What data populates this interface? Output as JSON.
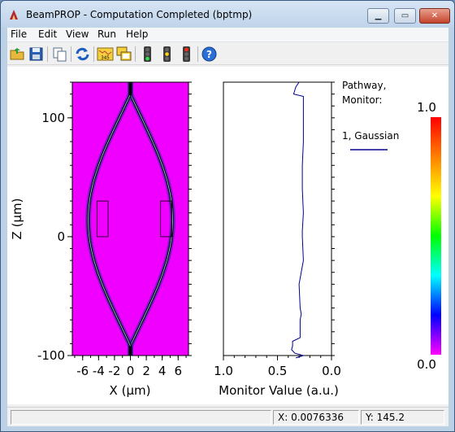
{
  "window": {
    "title": "BeamPROP - Computation Completed (bptmp)",
    "controls": [
      "minimize",
      "maximize",
      "close"
    ]
  },
  "menu": {
    "items": [
      {
        "label": "File"
      },
      {
        "label": "Edit"
      },
      {
        "label": "View"
      },
      {
        "label": "Run"
      },
      {
        "label": "Help"
      }
    ]
  },
  "toolbar": {
    "buttons": [
      "open-folder-icon",
      "save-icon",
      "copy-icon",
      "refresh-icon",
      "display-345-icon",
      "windows-icon",
      "traffic-light-green-icon",
      "traffic-light-yellow-icon",
      "traffic-light-red-icon",
      "help-icon"
    ],
    "display_label": "345"
  },
  "field_plot": {
    "ylabel": "Z (μm)",
    "xlabel": "X (μm)",
    "y_ticks": [
      "100",
      "0",
      "-100"
    ],
    "x_ticks": [
      "-6",
      "-4",
      "-2",
      "0",
      "2",
      "4",
      "6"
    ],
    "background_color": "#f000ff",
    "waveguide_color": "#000000"
  },
  "monitor_plot": {
    "xlabel": "Monitor Value (a.u.)",
    "x_ticks": [
      "1.0",
      "0.5",
      "0.0"
    ],
    "line_color": "#00008b"
  },
  "legend": {
    "title_line1": "Pathway,",
    "title_line2": "Monitor:",
    "entry": "1, Gaussian",
    "color": "#00008b"
  },
  "colorbar": {
    "max_label": "1.0",
    "min_label": "0.0",
    "stops": [
      "#ff0000",
      "#ff8000",
      "#ffff00",
      "#00ff00",
      "#00ffff",
      "#0000ff",
      "#ff00ff"
    ]
  },
  "chart_data": {
    "type": "line",
    "series": [
      {
        "name": "1, Gaussian",
        "x": [
          0.3,
          0.33,
          0.35,
          0.26,
          0.26,
          0.26,
          0.27,
          0.27,
          0.26,
          0.27,
          0.27,
          0.26,
          0.3,
          0.29,
          0.28,
          0.29,
          0.29,
          0.36,
          0.36,
          0.37,
          0.34,
          0.26,
          0.33
        ],
        "y": [
          130,
          126,
          120,
          118,
          100,
          80,
          60,
          40,
          20,
          5,
          0,
          -20,
          -40,
          -60,
          -65,
          -70,
          -85,
          -88,
          -92,
          -95,
          -98,
          -100,
          -102
        ]
      }
    ],
    "xlim": [
      1.0,
      0.0
    ],
    "ylim": [
      -100,
      130
    ],
    "xlabel": "Monitor Value (a.u.)"
  },
  "status": {
    "x_readout": "X: 0.0076336",
    "y_readout": "Y: 145.2"
  }
}
